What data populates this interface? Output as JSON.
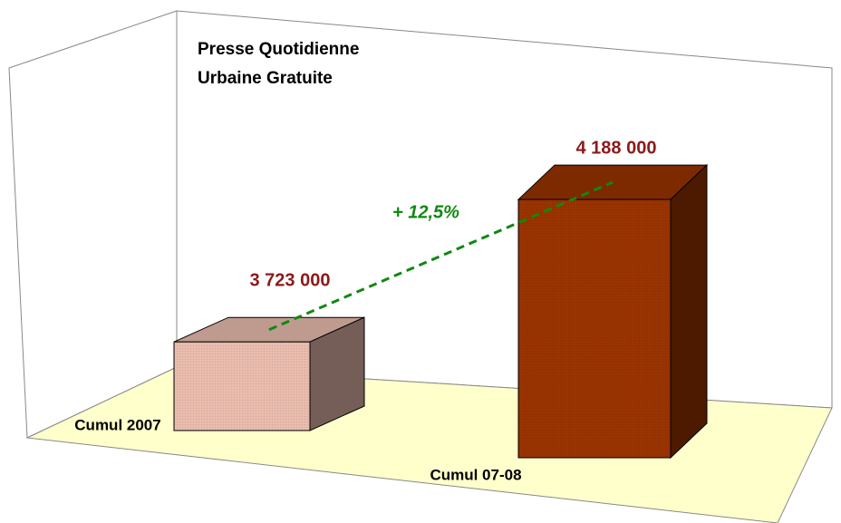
{
  "chart_data": {
    "type": "bar3d",
    "title": [
      "Presse Quotidienne",
      "Urbaine Gratuite"
    ],
    "categories": [
      "Cumul 2007",
      "Cumul 07-08"
    ],
    "values": [
      3723000,
      4188000
    ],
    "value_labels": [
      "3 723 000",
      "4 188 000"
    ],
    "colors": [
      "#e9bcae",
      "#993300"
    ],
    "annotation": "+ 12,5%",
    "ylim": [
      3480000,
      4300000
    ]
  }
}
